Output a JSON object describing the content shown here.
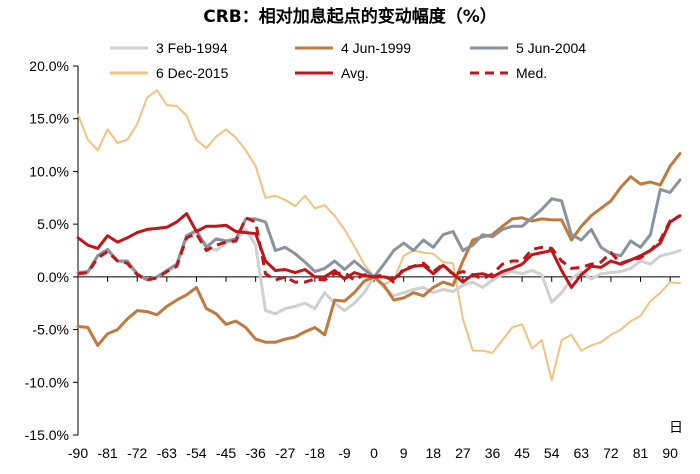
{
  "chart_data": {
    "type": "line",
    "title": "CRB：相对加息起点的变动幅度（%）",
    "xlabel": "日",
    "ylabel": "",
    "xlim": [
      -90,
      93
    ],
    "ylim": [
      -15,
      20
    ],
    "x_ticks": [
      -90,
      -81,
      -72,
      -63,
      -54,
      -45,
      -36,
      -27,
      -18,
      -9,
      0,
      9,
      18,
      27,
      36,
      45,
      54,
      63,
      72,
      81,
      90
    ],
    "y_ticks": [
      -15,
      -10,
      -5,
      0,
      5,
      10,
      15,
      20
    ],
    "y_tick_labels": [
      "-15.0%",
      "-10.0%",
      "-5.0%",
      "0.0%",
      "5.0%",
      "10.0%",
      "15.0%",
      "20.0%"
    ],
    "grid": false,
    "legend_position": "top",
    "series": [
      {
        "name": "3 Feb-1994",
        "color": "#d0d0d0",
        "dash": "solid",
        "width": 3,
        "x": [
          -90,
          -87,
          -84,
          -81,
          -78,
          -75,
          -72,
          -69,
          -66,
          -63,
          -60,
          -57,
          -54,
          -51,
          -48,
          -45,
          -42,
          -39,
          -36,
          -33,
          -30,
          -27,
          -24,
          -21,
          -18,
          -15,
          -12,
          -9,
          -6,
          -3,
          0,
          3,
          6,
          9,
          12,
          15,
          18,
          21,
          24,
          27,
          30,
          33,
          36,
          39,
          42,
          45,
          48,
          51,
          54,
          57,
          60,
          63,
          66,
          69,
          72,
          75,
          78,
          81,
          84,
          87,
          90,
          93
        ],
        "y": [
          0.4,
          0.4,
          2,
          2.5,
          1.5,
          1.3,
          0.2,
          -0.3,
          0,
          0.5,
          1,
          3.8,
          4.2,
          3,
          2.5,
          3.2,
          3.5,
          4.5,
          3,
          -3.2,
          -3.5,
          -3,
          -2.8,
          -2.5,
          -3,
          -1.5,
          -2.5,
          -3.2,
          -2.5,
          -1.5,
          0,
          -1,
          -1.8,
          -1.5,
          -1.2,
          -1,
          -1.5,
          -1.2,
          -1.4,
          -0.8,
          -0.5,
          -1,
          -0.3,
          0.2,
          0.5,
          0.3,
          0.6,
          0.2,
          -2.4,
          -1.5,
          -0.2,
          0.5,
          -0.2,
          0.3,
          0.4,
          0.5,
          0.8,
          1.5,
          1.2,
          2,
          2.2,
          2.5
        ]
      },
      {
        "name": "4 Jun-1999",
        "color": "#c07a3e",
        "dash": "solid",
        "width": 3,
        "x": [
          -90,
          -87,
          -84,
          -81,
          -78,
          -75,
          -72,
          -69,
          -66,
          -63,
          -60,
          -57,
          -54,
          -51,
          -48,
          -45,
          -42,
          -39,
          -36,
          -33,
          -30,
          -27,
          -24,
          -21,
          -18,
          -15,
          -12,
          -9,
          -6,
          -3,
          0,
          3,
          6,
          9,
          12,
          15,
          18,
          21,
          24,
          27,
          30,
          33,
          36,
          39,
          42,
          45,
          48,
          51,
          54,
          57,
          60,
          63,
          66,
          69,
          72,
          75,
          78,
          81,
          84,
          87,
          90,
          93
        ],
        "y": [
          -4.7,
          -4.8,
          -6.5,
          -5.4,
          -5,
          -4,
          -3.2,
          -3.3,
          -3.6,
          -2.8,
          -2.2,
          -1.7,
          -1,
          -3,
          -3.5,
          -4.5,
          -4.2,
          -4.8,
          -5.9,
          -6.2,
          -6.2,
          -5.9,
          -5.7,
          -5.2,
          -4.8,
          -5.5,
          -2.2,
          -2.3,
          -1.5,
          -0.4,
          0,
          -0.8,
          -2.2,
          -2,
          -1.5,
          -1.8,
          -1,
          -0.5,
          -0.8,
          1.5,
          3.5,
          3.8,
          4,
          4.8,
          5.5,
          5.6,
          5.3,
          5.5,
          5.4,
          5.4,
          3.5,
          4.8,
          5.8,
          6.5,
          7.2,
          8.5,
          9.5,
          8.8,
          9,
          8.7,
          10.5,
          11.7
        ]
      },
      {
        "name": "5 Jun-2004",
        "color": "#8a929c",
        "dash": "solid",
        "width": 3,
        "x": [
          -90,
          -87,
          -84,
          -81,
          -78,
          -75,
          -72,
          -69,
          -66,
          -63,
          -60,
          -57,
          -54,
          -51,
          -48,
          -45,
          -42,
          -39,
          -36,
          -33,
          -30,
          -27,
          -24,
          -21,
          -18,
          -15,
          -12,
          -9,
          -6,
          -3,
          0,
          3,
          6,
          9,
          12,
          15,
          18,
          21,
          24,
          27,
          30,
          33,
          36,
          39,
          42,
          45,
          48,
          51,
          54,
          57,
          60,
          63,
          66,
          69,
          72,
          75,
          78,
          81,
          84,
          87,
          90,
          93
        ],
        "y": [
          0.4,
          0.5,
          2,
          2.6,
          1.5,
          1.5,
          0.3,
          -0.3,
          0,
          0.6,
          1.2,
          3.9,
          4.4,
          2.8,
          3.6,
          3.4,
          3.6,
          5.5,
          5.5,
          5.2,
          2.5,
          2.8,
          2.2,
          1.4,
          0.5,
          0.8,
          1.5,
          0.7,
          1.5,
          0.7,
          0,
          1.2,
          2.5,
          3.2,
          2.5,
          3.5,
          2.8,
          4,
          4.3,
          2.5,
          3,
          4,
          3.8,
          4.5,
          4.8,
          4.8,
          5.6,
          6.4,
          7.4,
          7.2,
          4,
          3.5,
          4.5,
          2.8,
          2.2,
          2,
          3.4,
          2.8,
          4,
          8.3,
          8,
          9.2
        ]
      },
      {
        "name": "6 Dec-2015",
        "color": "#f2c27f",
        "dash": "solid",
        "width": 2,
        "x": [
          -90,
          -87,
          -84,
          -81,
          -78,
          -75,
          -72,
          -69,
          -66,
          -63,
          -60,
          -57,
          -54,
          -51,
          -48,
          -45,
          -42,
          -39,
          -36,
          -33,
          -30,
          -27,
          -24,
          -21,
          -18,
          -15,
          -12,
          -9,
          -6,
          -3,
          0,
          3,
          6,
          9,
          12,
          15,
          18,
          21,
          24,
          27,
          30,
          33,
          36,
          39,
          42,
          45,
          48,
          51,
          54,
          57,
          60,
          63,
          66,
          69,
          72,
          75,
          78,
          81,
          84,
          87,
          90,
          93
        ],
        "y": [
          15.4,
          13,
          12,
          14,
          12.7,
          13,
          14.5,
          17,
          17.7,
          16.3,
          16.2,
          15.3,
          13,
          12.2,
          13.3,
          14,
          13.2,
          12,
          10.5,
          7.5,
          7.7,
          7.3,
          6.7,
          7.7,
          6.5,
          6.8,
          5.8,
          4.5,
          2.9,
          1.2,
          0,
          -0.7,
          -0.3,
          2,
          2.5,
          2.3,
          2.2,
          1.4,
          1.3,
          -4,
          -7,
          -7,
          -7.2,
          -6,
          -4.8,
          -4.5,
          -6.8,
          -6,
          -9.8,
          -6,
          -5.5,
          -7,
          -6.5,
          -6.2,
          -5.5,
          -5,
          -4.2,
          -3.7,
          -2.3,
          -1.5,
          -0.5,
          -0.6
        ]
      },
      {
        "name": "Avg.",
        "color": "#c0151b",
        "dash": "solid",
        "width": 3,
        "x": [
          -90,
          -87,
          -84,
          -81,
          -78,
          -75,
          -72,
          -69,
          -66,
          -63,
          -60,
          -57,
          -54,
          -51,
          -48,
          -45,
          -42,
          -39,
          -36,
          -33,
          -30,
          -27,
          -24,
          -21,
          -18,
          -15,
          -12,
          -9,
          -6,
          -3,
          0,
          3,
          6,
          9,
          12,
          15,
          18,
          21,
          24,
          27,
          30,
          33,
          36,
          39,
          42,
          45,
          48,
          51,
          54,
          57,
          60,
          63,
          66,
          69,
          72,
          75,
          78,
          81,
          84,
          87,
          90,
          93
        ],
        "y": [
          3.7,
          3,
          2.7,
          3.9,
          3.3,
          3.7,
          4.2,
          4.5,
          4.6,
          4.7,
          5.2,
          6,
          4.3,
          4.8,
          4.8,
          4.9,
          4.3,
          4.2,
          4.1,
          1.5,
          0.6,
          0.7,
          0.4,
          0.7,
          0,
          0,
          0.6,
          -0.2,
          0.4,
          0.1,
          0,
          0,
          -0.2,
          0.6,
          1,
          1.1,
          0.3,
          1.1,
          0.3,
          -0.5,
          0.2,
          0.3,
          0,
          0.5,
          0.8,
          1.2,
          2.1,
          2.3,
          2.5,
          0.6,
          -1,
          0.2,
          1,
          0.9,
          1.5,
          1.2,
          1.6,
          2,
          2.5,
          3.2,
          5.2,
          5.8
        ]
      },
      {
        "name": "Med.",
        "color": "#c0151b",
        "dash": "dashed",
        "width": 3,
        "x": [
          -90,
          -87,
          -84,
          -81,
          -78,
          -75,
          -72,
          -69,
          -66,
          -63,
          -60,
          -57,
          -54,
          -51,
          -48,
          -45,
          -42,
          -39,
          -36,
          -33,
          -30,
          -27,
          -24,
          -21,
          -18,
          -15,
          -12,
          -9,
          -6,
          -3,
          0,
          3,
          6,
          9,
          12,
          15,
          18,
          21,
          24,
          27,
          30,
          33,
          36,
          39,
          42,
          45,
          48,
          51,
          54,
          57,
          60,
          63,
          66,
          69,
          72,
          75,
          78,
          81,
          84,
          87,
          90,
          93
        ],
        "y": [
          0.3,
          0.4,
          1.8,
          2.4,
          1.5,
          1.3,
          0.2,
          -0.3,
          -0.1,
          0.5,
          1,
          3.7,
          4.1,
          2.5,
          3,
          3.3,
          3.4,
          5.6,
          5.2,
          0.3,
          -0.3,
          0,
          -0.5,
          -0.5,
          -0.2,
          -0.3,
          0.3,
          0.4,
          -0.3,
          0.2,
          0,
          0.2,
          -0.5,
          0.8,
          1,
          1.3,
          0.5,
          1.2,
          0.2,
          0.5,
          0.2,
          -0.2,
          0.3,
          1.2,
          1.5,
          1.5,
          2.6,
          2.8,
          2.7,
          1.5,
          0.8,
          0.9,
          1.2,
          1.4,
          2.3,
          1.3,
          1.6,
          1.8,
          2.5,
          3.5,
          5.3,
          5.8
        ]
      }
    ]
  }
}
